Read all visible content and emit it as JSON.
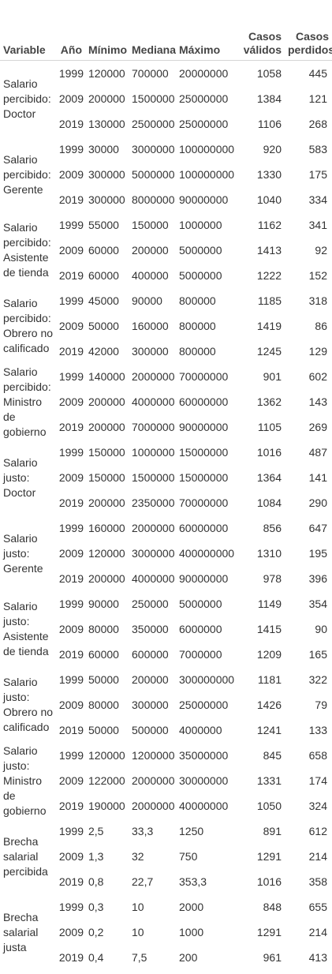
{
  "headers": {
    "variable": "Variable",
    "year": "Año",
    "min": "Mínimo",
    "median": "Mediana",
    "max": "Máximo",
    "valid": "Casos válidos",
    "lost": "Casos perdidos"
  },
  "groups": [
    {
      "label": "Salario percibido: Doctor",
      "rows": [
        {
          "year": "1999",
          "min": "120000",
          "median": "700000",
          "max": "20000000",
          "valid": "1058",
          "lost": "445"
        },
        {
          "year": "2009",
          "min": "200000",
          "median": "1500000",
          "max": "25000000",
          "valid": "1384",
          "lost": "121"
        },
        {
          "year": "2019",
          "min": "130000",
          "median": "2500000",
          "max": "25000000",
          "valid": "1106",
          "lost": "268"
        }
      ]
    },
    {
      "label": "Salario percibido: Gerente",
      "rows": [
        {
          "year": "1999",
          "min": "30000",
          "median": "3000000",
          "max": "100000000",
          "valid": "920",
          "lost": "583"
        },
        {
          "year": "2009",
          "min": "300000",
          "median": "5000000",
          "max": "100000000",
          "valid": "1330",
          "lost": "175"
        },
        {
          "year": "2019",
          "min": "300000",
          "median": "8000000",
          "max": "90000000",
          "valid": "1040",
          "lost": "334"
        }
      ]
    },
    {
      "label": "Salario percibido: Asistente de tienda",
      "rows": [
        {
          "year": "1999",
          "min": "55000",
          "median": "150000",
          "max": "1000000",
          "valid": "1162",
          "lost": "341"
        },
        {
          "year": "2009",
          "min": "60000",
          "median": "200000",
          "max": "5000000",
          "valid": "1413",
          "lost": "92"
        },
        {
          "year": "2019",
          "min": "60000",
          "median": "400000",
          "max": "5000000",
          "valid": "1222",
          "lost": "152"
        }
      ]
    },
    {
      "label": "Salario percibido: Obrero no calificado",
      "rows": [
        {
          "year": "1999",
          "min": "45000",
          "median": "90000",
          "max": "800000",
          "valid": "1185",
          "lost": "318"
        },
        {
          "year": "2009",
          "min": "50000",
          "median": "160000",
          "max": "800000",
          "valid": "1419",
          "lost": "86"
        },
        {
          "year": "2019",
          "min": "42000",
          "median": "300000",
          "max": "800000",
          "valid": "1245",
          "lost": "129"
        }
      ]
    },
    {
      "label": "Salario percibido: Ministro de gobierno",
      "rows": [
        {
          "year": "1999",
          "min": "140000",
          "median": "2000000",
          "max": "70000000",
          "valid": "901",
          "lost": "602"
        },
        {
          "year": "2009",
          "min": "200000",
          "median": "4000000",
          "max": "60000000",
          "valid": "1362",
          "lost": "143"
        },
        {
          "year": "2019",
          "min": "200000",
          "median": "7000000",
          "max": "90000000",
          "valid": "1105",
          "lost": "269"
        }
      ]
    },
    {
      "label": "Salario justo: Doctor",
      "rows": [
        {
          "year": "1999",
          "min": "150000",
          "median": "1000000",
          "max": "15000000",
          "valid": "1016",
          "lost": "487"
        },
        {
          "year": "2009",
          "min": "150000",
          "median": "1500000",
          "max": "15000000",
          "valid": "1364",
          "lost": "141"
        },
        {
          "year": "2019",
          "min": "200000",
          "median": "2350000",
          "max": "70000000",
          "valid": "1084",
          "lost": "290"
        }
      ]
    },
    {
      "label": "Salario justo: Gerente",
      "rows": [
        {
          "year": "1999",
          "min": "160000",
          "median": "2000000",
          "max": "60000000",
          "valid": "856",
          "lost": "647"
        },
        {
          "year": "2009",
          "min": "120000",
          "median": "3000000",
          "max": "400000000",
          "valid": "1310",
          "lost": "195"
        },
        {
          "year": "2019",
          "min": "200000",
          "median": "4000000",
          "max": "90000000",
          "valid": "978",
          "lost": "396"
        }
      ]
    },
    {
      "label": "Salario justo: Asistente de tienda",
      "rows": [
        {
          "year": "1999",
          "min": "90000",
          "median": "250000",
          "max": "5000000",
          "valid": "1149",
          "lost": "354"
        },
        {
          "year": "2009",
          "min": "80000",
          "median": "350000",
          "max": "6000000",
          "valid": "1415",
          "lost": "90"
        },
        {
          "year": "2019",
          "min": "60000",
          "median": "600000",
          "max": "7000000",
          "valid": "1209",
          "lost": "165"
        }
      ]
    },
    {
      "label": "Salario justo: Obrero no calificado",
      "rows": [
        {
          "year": "1999",
          "min": "50000",
          "median": "200000",
          "max": "300000000",
          "valid": "1181",
          "lost": "322"
        },
        {
          "year": "2009",
          "min": "80000",
          "median": "300000",
          "max": "25000000",
          "valid": "1426",
          "lost": "79"
        },
        {
          "year": "2019",
          "min": "50000",
          "median": "500000",
          "max": "4000000",
          "valid": "1241",
          "lost": "133"
        }
      ]
    },
    {
      "label": "Salario justo: Ministro de gobierno",
      "rows": [
        {
          "year": "1999",
          "min": "120000",
          "median": "1200000",
          "max": "35000000",
          "valid": "845",
          "lost": "658"
        },
        {
          "year": "2009",
          "min": "122000",
          "median": "2000000",
          "max": "30000000",
          "valid": "1331",
          "lost": "174"
        },
        {
          "year": "2019",
          "min": "190000",
          "median": "2000000",
          "max": "40000000",
          "valid": "1050",
          "lost": "324"
        }
      ]
    },
    {
      "label": "Brecha salarial percibida",
      "rows": [
        {
          "year": "1999",
          "min": "2,5",
          "median": "33,3",
          "max": "1250",
          "valid": "891",
          "lost": "612"
        },
        {
          "year": "2009",
          "min": "1,3",
          "median": "32",
          "max": "750",
          "valid": "1291",
          "lost": "214"
        },
        {
          "year": "2019",
          "min": "0,8",
          "median": "22,7",
          "max": "353,3",
          "valid": "1016",
          "lost": "358"
        }
      ]
    },
    {
      "label": "Brecha salarial justa",
      "rows": [
        {
          "year": "1999",
          "min": "0,3",
          "median": "10",
          "max": "2000",
          "valid": "848",
          "lost": "655"
        },
        {
          "year": "2009",
          "min": "0,2",
          "median": "10",
          "max": "1000",
          "valid": "1291",
          "lost": "214"
        },
        {
          "year": "2019",
          "min": "0,4",
          "median": "7,5",
          "max": "200",
          "valid": "961",
          "lost": "413"
        }
      ]
    }
  ]
}
